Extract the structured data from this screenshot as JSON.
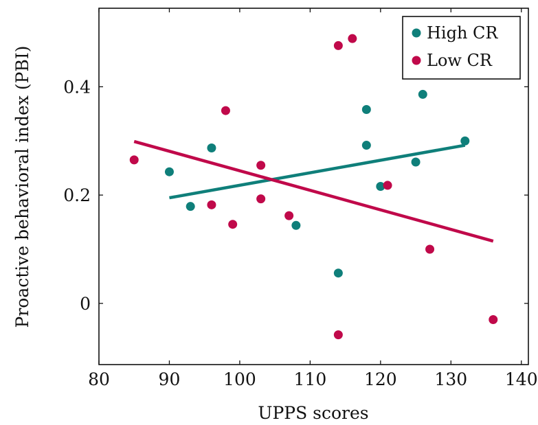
{
  "chart_data": {
    "type": "scatter",
    "xlabel": "UPPS scores",
    "ylabel": "Proactive behavioral index (PBI)",
    "xlim": [
      80,
      141
    ],
    "ylim": [
      -0.113,
      0.545
    ],
    "x_ticks": [
      80,
      90,
      100,
      110,
      120,
      130,
      140
    ],
    "y_ticks": [
      0,
      0.2,
      0.4
    ],
    "x_tick_labels": [
      "80",
      "90",
      "100",
      "110",
      "120",
      "130",
      "140"
    ],
    "y_tick_labels": [
      "0",
      "0.2",
      "0.4"
    ],
    "grid": false,
    "legend_position": "top-right",
    "series": [
      {
        "name": "High CR",
        "color": "#0f7f7a",
        "points": [
          [
            90,
            0.243
          ],
          [
            93,
            0.179
          ],
          [
            96,
            0.287
          ],
          [
            108,
            0.144
          ],
          [
            114,
            0.056
          ],
          [
            118,
            0.358
          ],
          [
            118,
            0.292
          ],
          [
            120,
            0.216
          ],
          [
            125,
            0.261
          ],
          [
            126,
            0.386
          ],
          [
            132,
            0.3
          ]
        ],
        "fit_line": [
          [
            90,
            0.195
          ],
          [
            132,
            0.292
          ]
        ]
      },
      {
        "name": "Low CR",
        "color": "#c0094a",
        "points": [
          [
            85,
            0.265
          ],
          [
            96,
            0.182
          ],
          [
            98,
            0.356
          ],
          [
            99,
            0.146
          ],
          [
            103,
            0.255
          ],
          [
            103,
            0.193
          ],
          [
            107,
            0.162
          ],
          [
            114,
            0.476
          ],
          [
            114,
            -0.058
          ],
          [
            116,
            0.489
          ],
          [
            121,
            0.218
          ],
          [
            127,
            0.1
          ],
          [
            136,
            -0.03
          ]
        ],
        "fit_line": [
          [
            85,
            0.299
          ],
          [
            136,
            0.115
          ]
        ]
      }
    ]
  }
}
